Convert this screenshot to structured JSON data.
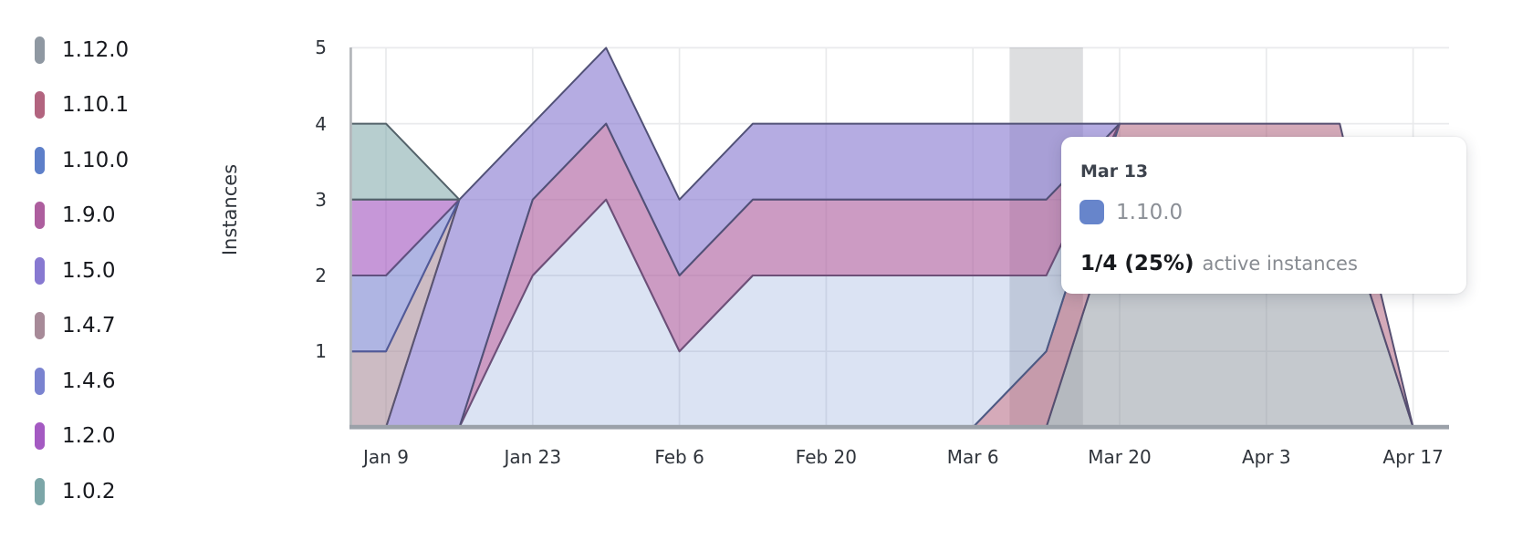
{
  "y_axis": {
    "title": "Instances",
    "ticks": [
      "5",
      "4",
      "3",
      "2",
      "1"
    ]
  },
  "x_axis": {
    "ticks": [
      "Jan 9",
      "Jan 23",
      "Feb 6",
      "Feb 20",
      "Mar 6",
      "Mar 20",
      "Apr 3",
      "Apr 17"
    ]
  },
  "legend": {
    "items": [
      {
        "label": "1.12.0",
        "color": "#8f98a2"
      },
      {
        "label": "1.10.1",
        "color": "#b2647f"
      },
      {
        "label": "1.10.0",
        "color": "#5d7fc9"
      },
      {
        "label": "1.9.0",
        "color": "#ad5e9e"
      },
      {
        "label": "1.5.0",
        "color": "#8779d1"
      },
      {
        "label": "1.4.7",
        "color": "#a78a98"
      },
      {
        "label": "1.4.6",
        "color": "#7a83d0"
      },
      {
        "label": "1.2.0",
        "color": "#a45ac2"
      },
      {
        "label": "1.0.2",
        "color": "#7ca6a8"
      }
    ]
  },
  "tooltip": {
    "date": "Mar 13",
    "series": "1.10.0",
    "swatch_color": "#6785cb",
    "value": "1/4 (25%)",
    "suffix": "active instances"
  },
  "chart_data": {
    "type": "area",
    "stacked": true,
    "title": "",
    "xlabel": "",
    "ylabel": "Instances",
    "ylim": [
      0,
      5
    ],
    "grid": true,
    "legend_position": "left",
    "highlight_x": "Mar 13",
    "x": [
      "Jan 2",
      "Jan 9",
      "Jan 16",
      "Jan 23",
      "Jan 30",
      "Feb 6",
      "Feb 13",
      "Feb 20",
      "Feb 27",
      "Mar 6",
      "Mar 13",
      "Mar 20",
      "Mar 27",
      "Apr 3",
      "Apr 10",
      "Apr 17"
    ],
    "series": [
      {
        "name": "1.12.0",
        "color": "#8f98a2",
        "stroke": "#5a616c",
        "fill_opacity": 0.52,
        "values": [
          0,
          0,
          0,
          0,
          0,
          0,
          0,
          0,
          0,
          0,
          0,
          3,
          3,
          3,
          3,
          0
        ]
      },
      {
        "name": "1.10.1",
        "color": "#b2647f",
        "stroke": "#564f71",
        "fill_opacity": 0.55,
        "values": [
          0,
          0,
          0,
          0,
          0,
          0,
          0,
          0,
          0,
          0,
          1,
          1,
          1,
          1,
          1,
          0
        ]
      },
      {
        "name": "1.10.0",
        "color": "#5d7fc9",
        "stroke": "#4d5a84",
        "fill_opacity": 0.22,
        "values": [
          0,
          0,
          0,
          2,
          3,
          1,
          2,
          2,
          2,
          2,
          1,
          0,
          0,
          0,
          0,
          0
        ]
      },
      {
        "name": "1.9.0",
        "color": "#ad5e9e",
        "stroke": "#6e5078",
        "fill_opacity": 0.62,
        "values": [
          0,
          0,
          0,
          1,
          1,
          1,
          1,
          1,
          1,
          1,
          1,
          0,
          0,
          0,
          0,
          0
        ]
      },
      {
        "name": "1.5.0",
        "color": "#8779d1",
        "stroke": "#515177",
        "fill_opacity": 0.62,
        "values": [
          0,
          0,
          3,
          1,
          1,
          1,
          1,
          1,
          1,
          1,
          1,
          0,
          0,
          0,
          0,
          0
        ]
      },
      {
        "name": "1.4.7",
        "color": "#a78a98",
        "stroke": "#5a5470",
        "fill_opacity": 0.58,
        "values": [
          1,
          1,
          0,
          0,
          0,
          0,
          0,
          0,
          0,
          0,
          0,
          0,
          0,
          0,
          0,
          0
        ]
      },
      {
        "name": "1.4.6",
        "color": "#7a83d0",
        "stroke": "#515a99",
        "fill_opacity": 0.6,
        "values": [
          1,
          1,
          0,
          0,
          0,
          0,
          0,
          0,
          0,
          0,
          0,
          0,
          0,
          0,
          0,
          0
        ]
      },
      {
        "name": "1.2.0",
        "color": "#a45ac2",
        "stroke": "#61517f",
        "fill_opacity": 0.63,
        "values": [
          1,
          1,
          0,
          0,
          0,
          0,
          0,
          0,
          0,
          0,
          0,
          0,
          0,
          0,
          0,
          0
        ]
      },
      {
        "name": "1.0.2",
        "color": "#7ca6a8",
        "stroke": "#53626a",
        "fill_opacity": 0.55,
        "values": [
          1,
          1,
          0,
          0,
          0,
          0,
          0,
          0,
          0,
          0,
          0,
          0,
          0,
          0,
          0,
          0
        ]
      }
    ]
  }
}
